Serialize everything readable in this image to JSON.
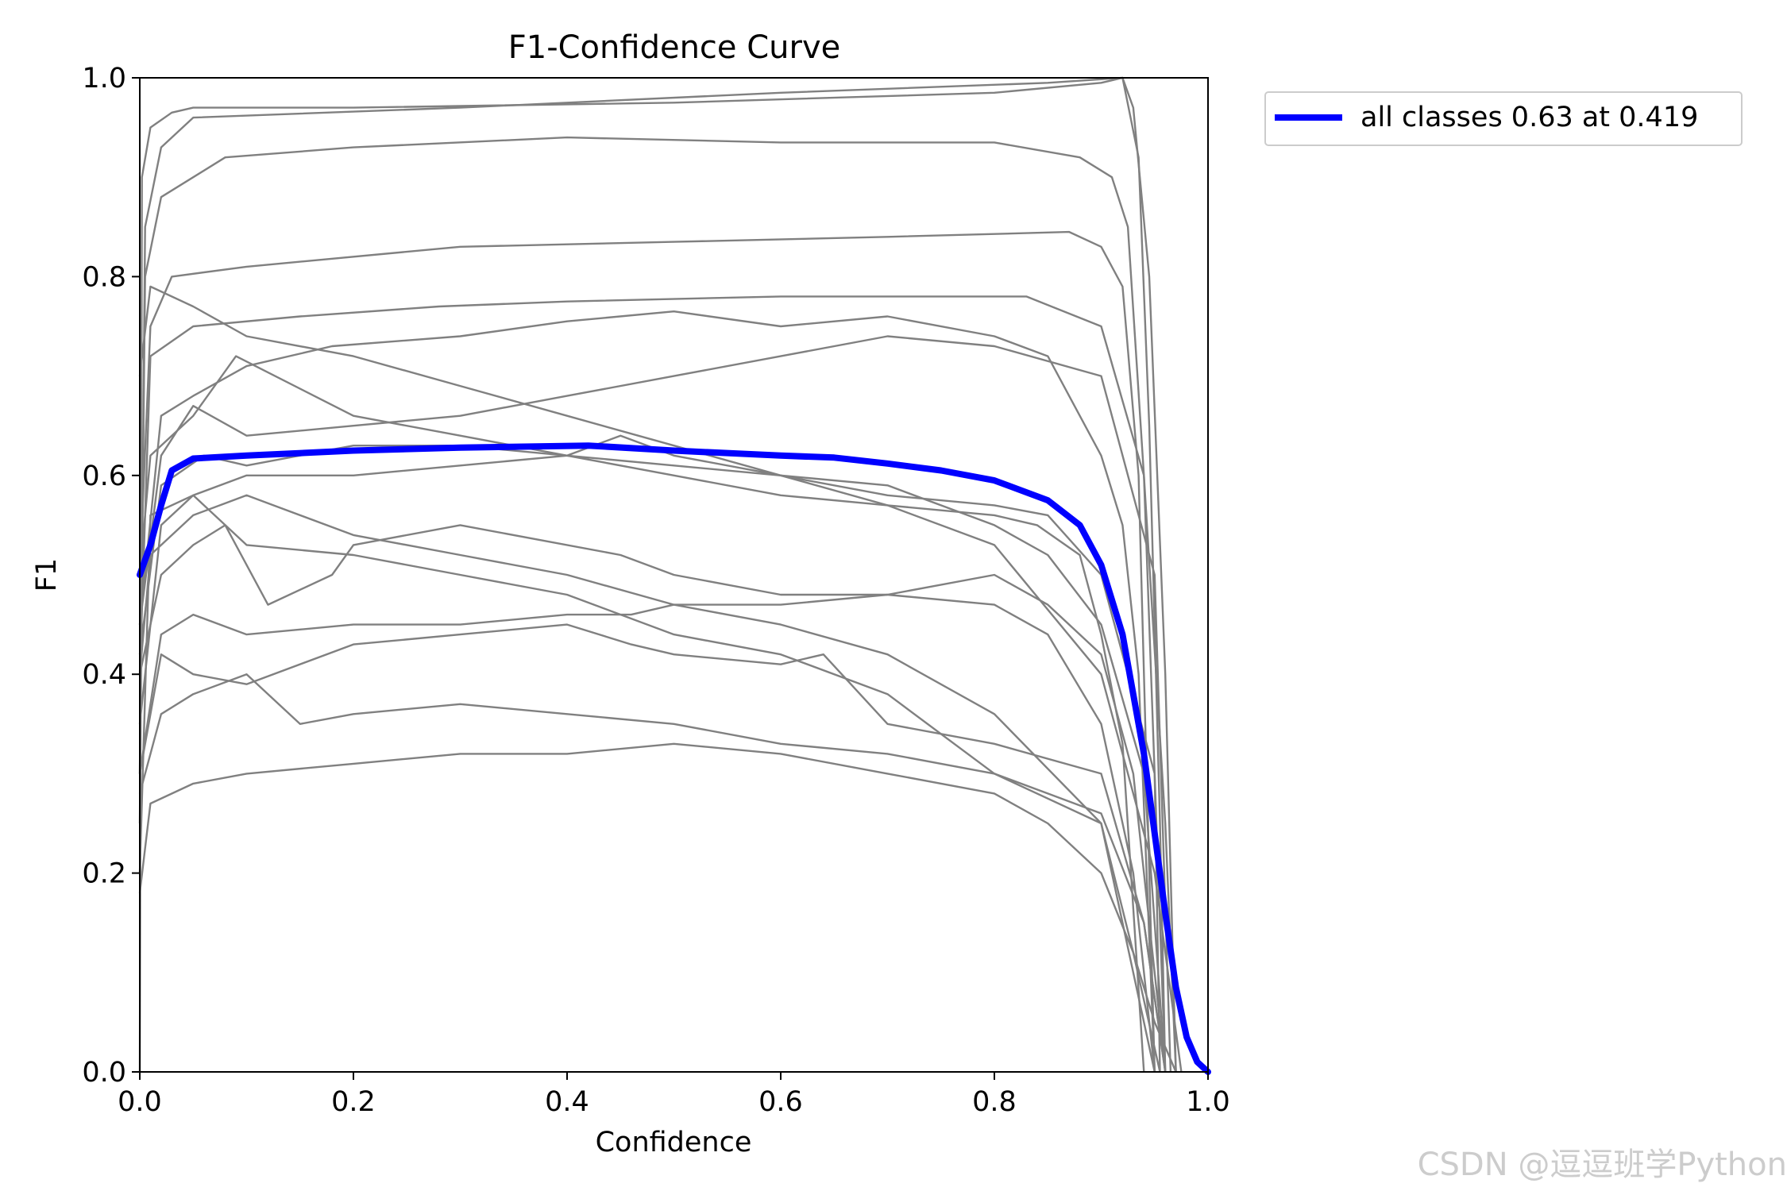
{
  "chart_data": {
    "type": "line",
    "title": "F1-Confidence Curve",
    "xlabel": "Confidence",
    "ylabel": "F1",
    "xlim": [
      0,
      1
    ],
    "ylim": [
      0,
      1
    ],
    "xticks": [
      0.0,
      0.2,
      0.4,
      0.6,
      0.8,
      1.0
    ],
    "yticks": [
      0.0,
      0.2,
      0.4,
      0.6,
      0.8,
      1.0
    ],
    "xticklabels": [
      "0.0",
      "0.2",
      "0.4",
      "0.6",
      "0.8",
      "1.0"
    ],
    "yticklabels": [
      "0.0",
      "0.2",
      "0.4",
      "0.6",
      "0.8",
      "1.0"
    ],
    "grid": false,
    "legend_position": "outside-top-right",
    "legend_label": "all classes 0.63 at 0.419",
    "colors": {
      "class_lines": "#808080",
      "all_classes": "#0000ff"
    },
    "series": [
      {
        "name": "all classes 0.63 at 0.419",
        "x": [
          0.0,
          0.01,
          0.02,
          0.03,
          0.05,
          0.1,
          0.2,
          0.3,
          0.42,
          0.5,
          0.6,
          0.65,
          0.7,
          0.75,
          0.8,
          0.85,
          0.88,
          0.9,
          0.92,
          0.94,
          0.95,
          0.96,
          0.97,
          0.98,
          0.99,
          1.0
        ],
        "y": [
          0.5,
          0.53,
          0.57,
          0.605,
          0.617,
          0.62,
          0.625,
          0.628,
          0.63,
          0.625,
          0.62,
          0.618,
          0.612,
          0.605,
          0.595,
          0.575,
          0.55,
          0.51,
          0.44,
          0.32,
          0.24,
          0.16,
          0.085,
          0.035,
          0.01,
          0.0
        ]
      },
      {
        "x": [
          0.0,
          0.002,
          0.01,
          0.03,
          0.05,
          0.2,
          0.5,
          0.8,
          0.9,
          0.92,
          0.935,
          0.945,
          0.955,
          0.96
        ],
        "y": [
          0.0,
          0.9,
          0.95,
          0.965,
          0.97,
          0.97,
          0.975,
          0.985,
          0.995,
          1.0,
          0.92,
          0.65,
          0.25,
          0.0
        ]
      },
      {
        "x": [
          0.0,
          0.005,
          0.02,
          0.05,
          0.3,
          0.6,
          0.85,
          0.92,
          0.93,
          0.945,
          0.96,
          0.97
        ],
        "y": [
          0.25,
          0.85,
          0.93,
          0.96,
          0.97,
          0.985,
          0.995,
          1.0,
          0.97,
          0.8,
          0.4,
          0.0
        ]
      },
      {
        "x": [
          0.0,
          0.005,
          0.02,
          0.08,
          0.2,
          0.4,
          0.6,
          0.8,
          0.88,
          0.91,
          0.925,
          0.94,
          0.95,
          0.955
        ],
        "y": [
          0.3,
          0.8,
          0.88,
          0.92,
          0.93,
          0.94,
          0.935,
          0.935,
          0.92,
          0.9,
          0.85,
          0.6,
          0.3,
          0.0
        ]
      },
      {
        "x": [
          0.0,
          0.01,
          0.03,
          0.1,
          0.3,
          0.5,
          0.7,
          0.87,
          0.9,
          0.92,
          0.935,
          0.95
        ],
        "y": [
          0.5,
          0.75,
          0.8,
          0.81,
          0.83,
          0.835,
          0.84,
          0.845,
          0.83,
          0.79,
          0.6,
          0.0
        ]
      },
      {
        "x": [
          0.0,
          0.01,
          0.05,
          0.15,
          0.28,
          0.4,
          0.6,
          0.75,
          0.83,
          0.9,
          0.94,
          0.96,
          0.97
        ],
        "y": [
          0.4,
          0.72,
          0.75,
          0.76,
          0.77,
          0.775,
          0.78,
          0.78,
          0.78,
          0.75,
          0.6,
          0.25,
          0.0
        ]
      },
      {
        "x": [
          0.0,
          0.02,
          0.05,
          0.1,
          0.18,
          0.3,
          0.4,
          0.5,
          0.6,
          0.7,
          0.8,
          0.85,
          0.88,
          0.9,
          0.92,
          0.935,
          0.95
        ],
        "y": [
          0.45,
          0.66,
          0.68,
          0.71,
          0.73,
          0.74,
          0.755,
          0.765,
          0.75,
          0.76,
          0.74,
          0.72,
          0.66,
          0.62,
          0.55,
          0.4,
          0.0
        ]
      },
      {
        "x": [
          0.0,
          0.01,
          0.05,
          0.09,
          0.2,
          0.3,
          0.4,
          0.5,
          0.6,
          0.7,
          0.8,
          0.84,
          0.88,
          0.9,
          0.92,
          0.94
        ],
        "y": [
          0.5,
          0.62,
          0.66,
          0.72,
          0.66,
          0.64,
          0.62,
          0.6,
          0.58,
          0.57,
          0.56,
          0.55,
          0.52,
          0.44,
          0.33,
          0.0
        ]
      },
      {
        "x": [
          0.0,
          0.02,
          0.06,
          0.1,
          0.2,
          0.3,
          0.4,
          0.45,
          0.5,
          0.6,
          0.7,
          0.8,
          0.85,
          0.9,
          0.95,
          0.96
        ],
        "y": [
          0.42,
          0.59,
          0.62,
          0.61,
          0.63,
          0.63,
          0.62,
          0.64,
          0.62,
          0.6,
          0.58,
          0.57,
          0.56,
          0.5,
          0.3,
          0.0
        ]
      },
      {
        "x": [
          0.0,
          0.02,
          0.05,
          0.1,
          0.2,
          0.3,
          0.4,
          0.5,
          0.6,
          0.7,
          0.75,
          0.8,
          0.85,
          0.9,
          0.94,
          0.96
        ],
        "y": [
          0.35,
          0.55,
          0.58,
          0.6,
          0.6,
          0.61,
          0.62,
          0.61,
          0.6,
          0.59,
          0.57,
          0.55,
          0.52,
          0.45,
          0.3,
          0.0
        ]
      },
      {
        "x": [
          0.0,
          0.02,
          0.05,
          0.08,
          0.12,
          0.18,
          0.2,
          0.3,
          0.45,
          0.5,
          0.6,
          0.7,
          0.8,
          0.85,
          0.9,
          0.93,
          0.95
        ],
        "y": [
          0.4,
          0.5,
          0.53,
          0.55,
          0.47,
          0.5,
          0.53,
          0.55,
          0.52,
          0.5,
          0.48,
          0.48,
          0.47,
          0.44,
          0.35,
          0.2,
          0.0
        ]
      },
      {
        "x": [
          0.0,
          0.02,
          0.05,
          0.1,
          0.2,
          0.3,
          0.4,
          0.46,
          0.5,
          0.6,
          0.7,
          0.8,
          0.85,
          0.9,
          0.93,
          0.96
        ],
        "y": [
          0.3,
          0.44,
          0.46,
          0.44,
          0.45,
          0.45,
          0.46,
          0.46,
          0.47,
          0.47,
          0.48,
          0.5,
          0.47,
          0.42,
          0.3,
          0.0
        ]
      },
      {
        "x": [
          0.0,
          0.02,
          0.05,
          0.1,
          0.2,
          0.3,
          0.4,
          0.46,
          0.5,
          0.6,
          0.64,
          0.7,
          0.8,
          0.9,
          0.94,
          0.96
        ],
        "y": [
          0.3,
          0.42,
          0.4,
          0.39,
          0.43,
          0.44,
          0.45,
          0.43,
          0.42,
          0.41,
          0.42,
          0.35,
          0.33,
          0.3,
          0.15,
          0.0
        ]
      },
      {
        "x": [
          0.0,
          0.02,
          0.05,
          0.1,
          0.15,
          0.2,
          0.3,
          0.4,
          0.5,
          0.6,
          0.7,
          0.8,
          0.85,
          0.9,
          0.94,
          0.96
        ],
        "y": [
          0.28,
          0.36,
          0.38,
          0.4,
          0.35,
          0.36,
          0.37,
          0.36,
          0.35,
          0.33,
          0.32,
          0.3,
          0.28,
          0.26,
          0.15,
          0.0
        ]
      },
      {
        "x": [
          0.0,
          0.01,
          0.05,
          0.1,
          0.2,
          0.3,
          0.4,
          0.5,
          0.6,
          0.7,
          0.8,
          0.85,
          0.9,
          0.93,
          0.955
        ],
        "y": [
          0.18,
          0.27,
          0.29,
          0.3,
          0.31,
          0.32,
          0.32,
          0.33,
          0.32,
          0.3,
          0.28,
          0.25,
          0.2,
          0.12,
          0.0
        ]
      },
      {
        "x": [
          0.0,
          0.01,
          0.05,
          0.1,
          0.2,
          0.3,
          0.4,
          0.5,
          0.6,
          0.7,
          0.8,
          0.9,
          0.93,
          0.95,
          0.97
        ],
        "y": [
          0.2,
          0.56,
          0.58,
          0.53,
          0.52,
          0.5,
          0.48,
          0.44,
          0.42,
          0.38,
          0.3,
          0.25,
          0.12,
          0.05,
          0.0
        ]
      },
      {
        "x": [
          0.0,
          0.01,
          0.05,
          0.1,
          0.2,
          0.3,
          0.4,
          0.5,
          0.6,
          0.7,
          0.8,
          0.9,
          0.95,
          0.975
        ],
        "y": [
          0.7,
          0.79,
          0.77,
          0.74,
          0.72,
          0.69,
          0.66,
          0.63,
          0.6,
          0.57,
          0.53,
          0.4,
          0.2,
          0.0
        ]
      },
      {
        "x": [
          0.0,
          0.02,
          0.05,
          0.1,
          0.2,
          0.3,
          0.4,
          0.5,
          0.6,
          0.7,
          0.8,
          0.9,
          0.95,
          0.965
        ],
        "y": [
          0.45,
          0.62,
          0.67,
          0.64,
          0.65,
          0.66,
          0.68,
          0.7,
          0.72,
          0.74,
          0.73,
          0.7,
          0.5,
          0.0
        ]
      },
      {
        "x": [
          0.0,
          0.01,
          0.05,
          0.1,
          0.2,
          0.3,
          0.4,
          0.5,
          0.6,
          0.7,
          0.8,
          0.9,
          0.92,
          0.95
        ],
        "y": [
          0.4,
          0.52,
          0.56,
          0.58,
          0.54,
          0.52,
          0.5,
          0.47,
          0.45,
          0.42,
          0.36,
          0.25,
          0.15,
          0.0
        ]
      }
    ]
  },
  "watermark": "CSDN @逗逗班学Python"
}
